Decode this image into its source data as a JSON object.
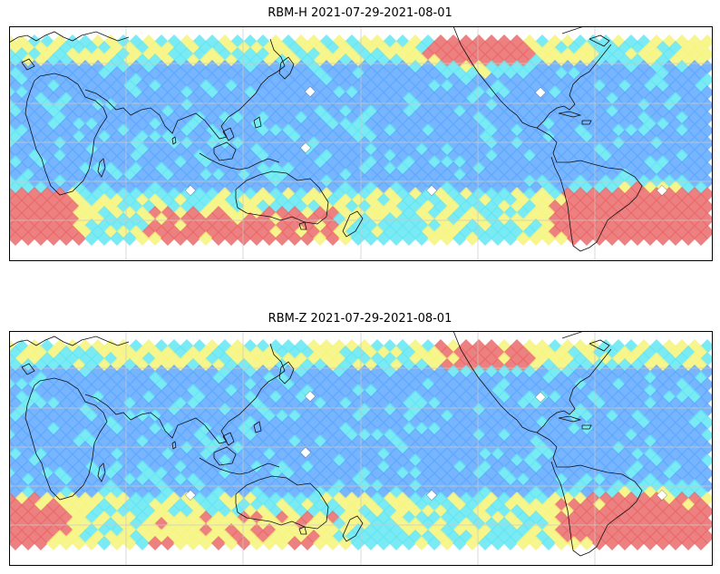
{
  "figure": {
    "panels": [
      {
        "id": "rbm-h",
        "title": "RBM-H 2021-07-29-2021-08-01",
        "hotspots": "strong"
      },
      {
        "id": "rbm-z",
        "title": "RBM-Z 2021-07-29-2021-08-01",
        "hotspots": "weak"
      }
    ]
  },
  "colors": {
    "low": "#6f74f6",
    "mid_low": "#5fa8ff",
    "mid": "#63e6f2",
    "mid_high": "#f6f47a",
    "high": "#ea6a6a",
    "coast": "#111111",
    "grid": "#c8c8c8"
  }
}
